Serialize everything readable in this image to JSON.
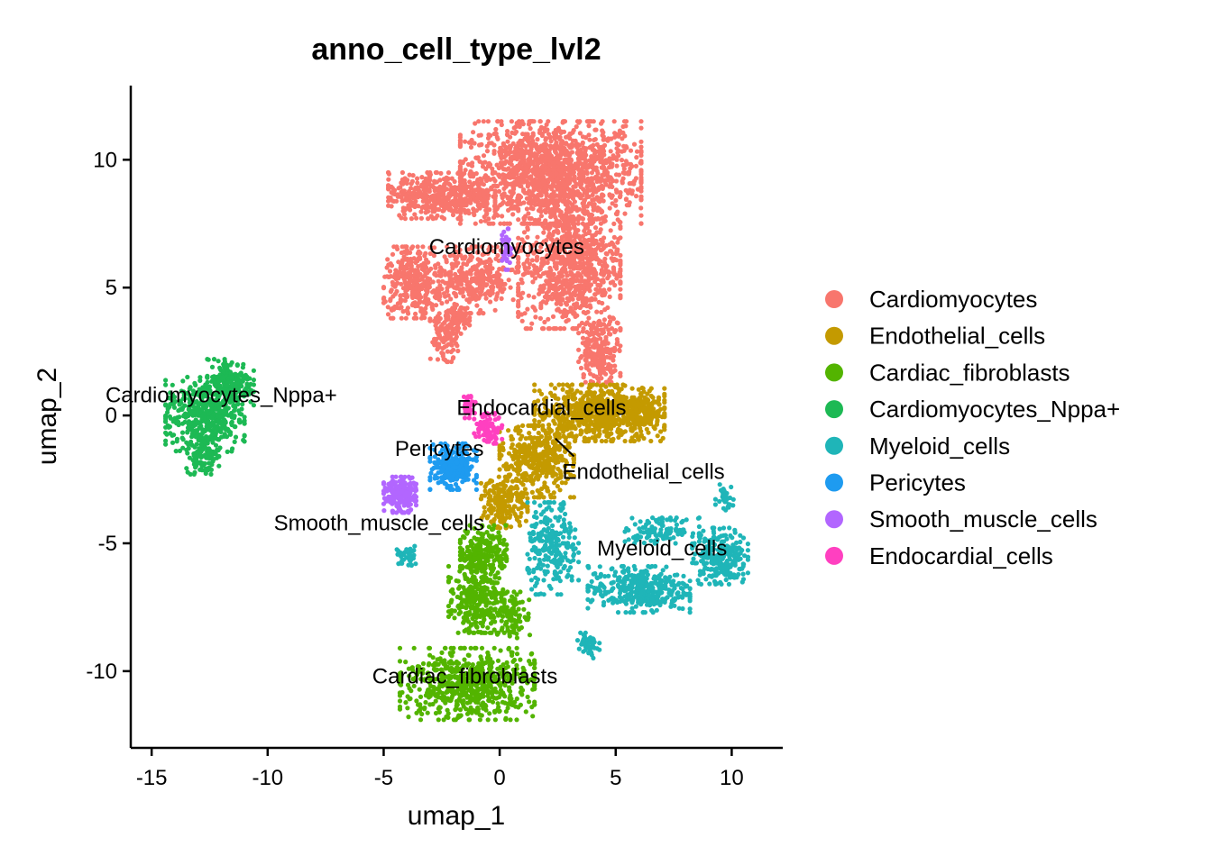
{
  "chart_data": {
    "type": "scatter",
    "title": "anno_cell_type_lvl2",
    "xlabel": "umap_1",
    "ylabel": "umap_2",
    "xlim": [
      -15.9,
      12.2
    ],
    "ylim": [
      -13.0,
      12.9
    ],
    "xticks": [
      -15,
      -10,
      -5,
      0,
      5,
      10
    ],
    "yticks": [
      -10,
      -5,
      0,
      5,
      10
    ],
    "xtick_labels": [
      "-15",
      "-10",
      "-5",
      "0",
      "5",
      "10"
    ],
    "ytick_labels": [
      "-10",
      "-5",
      "0",
      "5",
      "10"
    ],
    "grid": false,
    "legend_position": "right",
    "series": [
      {
        "name": "Cardiomyocytes",
        "color": "#F8766D",
        "label_text": "Cardiomyocytes",
        "label_at": [
          0.3,
          6.6
        ],
        "blobs": [
          {
            "cx": 2.2,
            "cy": 9.5,
            "rx": 3.9,
            "ry": 2.0,
            "n": 1400
          },
          {
            "cx": 3.0,
            "cy": 6.0,
            "rx": 2.2,
            "ry": 2.6,
            "n": 900
          },
          {
            "cx": -2.5,
            "cy": 8.6,
            "rx": 2.3,
            "ry": 0.9,
            "n": 450
          },
          {
            "cx": -3.8,
            "cy": 5.2,
            "rx": 1.2,
            "ry": 1.4,
            "n": 300
          },
          {
            "cx": -1.2,
            "cy": 5.3,
            "rx": 2.0,
            "ry": 1.3,
            "n": 380
          },
          {
            "cx": -2.4,
            "cy": 3.1,
            "rx": 0.6,
            "ry": 1.0,
            "n": 110
          },
          {
            "cx": -1.8,
            "cy": 3.7,
            "rx": 0.5,
            "ry": 0.5,
            "n": 70
          },
          {
            "cx": 4.3,
            "cy": 2.5,
            "rx": 0.9,
            "ry": 1.2,
            "n": 220
          }
        ]
      },
      {
        "name": "Endothelial_cells",
        "color": "#C49A00",
        "label_text": "Endothelial_cells",
        "label_at": [
          6.2,
          -2.2
        ],
        "leader_from": [
          2.4,
          -0.9
        ],
        "leader_to": [
          3.2,
          -1.6
        ],
        "blobs": [
          {
            "cx": 4.3,
            "cy": 0.1,
            "rx": 2.8,
            "ry": 1.1,
            "n": 700
          },
          {
            "cx": 1.6,
            "cy": -1.8,
            "rx": 1.6,
            "ry": 1.4,
            "n": 420
          },
          {
            "cx": 0.2,
            "cy": -3.4,
            "rx": 1.0,
            "ry": 1.0,
            "n": 180
          },
          {
            "cx": 6.2,
            "cy": 0.1,
            "rx": 0.9,
            "ry": 0.6,
            "n": 120
          }
        ]
      },
      {
        "name": "Cardiac_fibroblasts",
        "color": "#53B400",
        "label_text": "Cardiac_fibroblasts",
        "label_at": [
          -1.5,
          -10.2
        ],
        "blobs": [
          {
            "cx": -1.4,
            "cy": -10.5,
            "rx": 2.9,
            "ry": 1.4,
            "n": 650
          },
          {
            "cx": -1.0,
            "cy": -7.2,
            "rx": 1.2,
            "ry": 1.3,
            "n": 300
          },
          {
            "cx": -0.7,
            "cy": -5.3,
            "rx": 1.0,
            "ry": 1.0,
            "n": 220
          },
          {
            "cx": 0.6,
            "cy": -7.8,
            "rx": 0.7,
            "ry": 0.9,
            "n": 100
          }
        ]
      },
      {
        "name": "Cardiomyocytes_Nppa+",
        "color": "#00C094",
        "draw_color": "#1DB954",
        "label_text": "Cardiomyocytes_Nppa+",
        "label_at": [
          -12.0,
          0.8
        ],
        "blobs": [
          {
            "cx": -12.7,
            "cy": 0.0,
            "rx": 1.7,
            "ry": 1.5,
            "n": 460
          },
          {
            "cx": -11.6,
            "cy": 1.3,
            "rx": 1.0,
            "ry": 0.9,
            "n": 180
          },
          {
            "cx": -12.8,
            "cy": -1.6,
            "rx": 0.7,
            "ry": 0.7,
            "n": 90
          }
        ]
      },
      {
        "name": "Myeloid_cells",
        "color": "#00B6EB",
        "draw_color": "#1FB5B8",
        "label_text": "Myeloid_cells",
        "label_at": [
          7.0,
          -5.2
        ],
        "blobs": [
          {
            "cx": 6.0,
            "cy": -6.8,
            "rx": 2.2,
            "ry": 0.9,
            "n": 380
          },
          {
            "cx": 9.5,
            "cy": -5.5,
            "rx": 1.2,
            "ry": 1.1,
            "n": 240
          },
          {
            "cx": 2.3,
            "cy": -5.2,
            "rx": 1.1,
            "ry": 1.8,
            "n": 240
          },
          {
            "cx": 3.8,
            "cy": -9.0,
            "rx": 0.5,
            "ry": 0.5,
            "n": 50
          },
          {
            "cx": -4.0,
            "cy": -5.5,
            "rx": 0.5,
            "ry": 0.4,
            "n": 40
          },
          {
            "cx": 9.7,
            "cy": -3.2,
            "rx": 0.4,
            "ry": 0.5,
            "n": 30
          },
          {
            "cx": 7.0,
            "cy": -4.5,
            "rx": 1.6,
            "ry": 0.5,
            "n": 120
          }
        ]
      },
      {
        "name": "Pericytes",
        "color": "#06A4FF",
        "draw_color": "#1E9BF0",
        "label_text": "Pericytes",
        "label_at": [
          -2.6,
          -1.3
        ],
        "blobs": [
          {
            "cx": -2.0,
            "cy": -2.0,
            "rx": 1.0,
            "ry": 0.9,
            "n": 260
          }
        ]
      },
      {
        "name": "Smooth_muscle_cells",
        "color": "#A58AFF",
        "draw_color": "#B266FF",
        "label_text": "Smooth_muscle_cells",
        "label_at": [
          -5.2,
          -4.2
        ],
        "blobs": [
          {
            "cx": -4.3,
            "cy": -3.1,
            "rx": 0.7,
            "ry": 0.7,
            "n": 200
          },
          {
            "cx": 0.3,
            "cy": 6.5,
            "rx": 0.2,
            "ry": 0.8,
            "n": 40
          }
        ]
      },
      {
        "name": "Endocardial_cells",
        "color": "#FB61D7",
        "draw_color": "#FF40C0",
        "label_text": "Endocardial_cells",
        "label_at": [
          1.8,
          0.3
        ],
        "blobs": [
          {
            "cx": -0.5,
            "cy": -0.5,
            "rx": 0.6,
            "ry": 0.6,
            "n": 90
          },
          {
            "cx": -1.3,
            "cy": 0.4,
            "rx": 0.3,
            "ry": 0.5,
            "n": 30
          }
        ]
      }
    ],
    "legend_order": [
      "Cardiomyocytes",
      "Endothelial_cells",
      "Cardiac_fibroblasts",
      "Cardiomyocytes_Nppa+",
      "Myeloid_cells",
      "Pericytes",
      "Smooth_muscle_cells",
      "Endocardial_cells"
    ]
  }
}
